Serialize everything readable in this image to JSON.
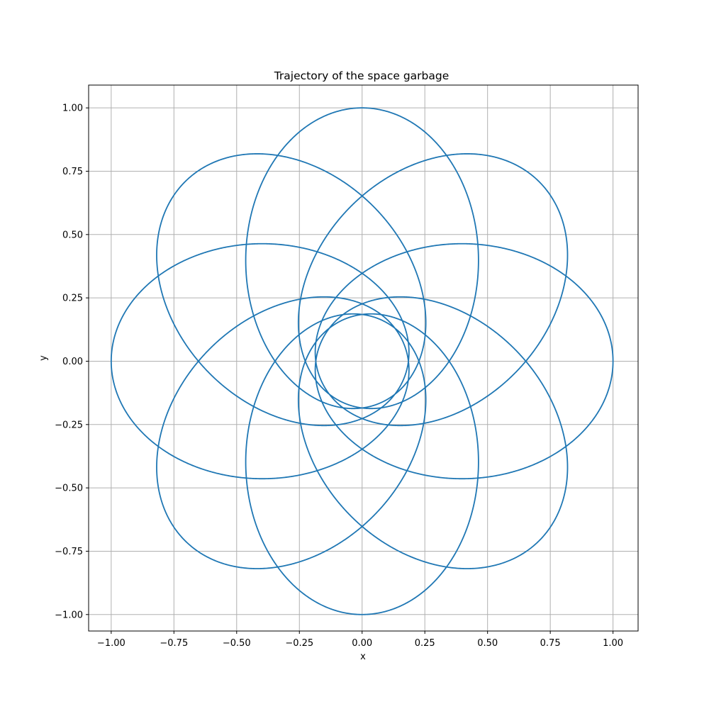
{
  "chart_data": {
    "type": "line",
    "title": "Trajectory of the space garbage",
    "xlabel": "x",
    "ylabel": "y",
    "xlim": [
      -1.09,
      1.1
    ],
    "ylim": [
      -1.065,
      1.09
    ],
    "xticks": [
      -1.0,
      -0.75,
      -0.5,
      -0.25,
      0.0,
      0.25,
      0.5,
      0.75,
      1.0
    ],
    "xtick_labels": [
      "−1.00",
      "−0.75",
      "−0.50",
      "−0.25",
      "0.00",
      "0.25",
      "0.50",
      "0.75",
      "1.00"
    ],
    "yticks": [
      -1.0,
      -0.75,
      -0.5,
      -0.25,
      0.0,
      0.25,
      0.5,
      0.75,
      1.0
    ],
    "ytick_labels": [
      "−1.00",
      "−0.75",
      "−0.50",
      "−0.25",
      "0.00",
      "0.25",
      "0.50",
      "0.75",
      "1.00"
    ],
    "grid": true,
    "series": [
      {
        "color": "#1f77b4",
        "orbit": {
          "start_point": [
            1.0,
            0.0
          ],
          "end_point": [
            0.955,
            0.23
          ],
          "periapsis": 0.18,
          "apoapsis": 1.0,
          "loops": 9,
          "precession_per_loop_deg": 40,
          "precession_direction": "counterclockwise"
        }
      }
    ]
  }
}
